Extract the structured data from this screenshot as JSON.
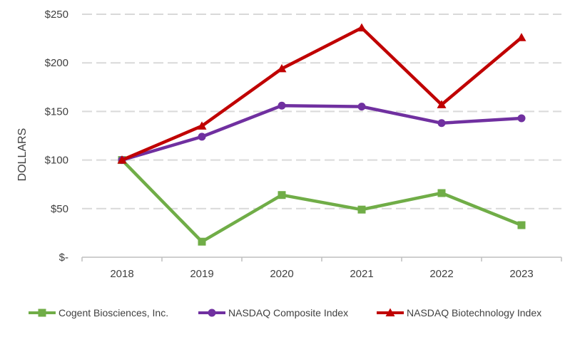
{
  "chart_data": {
    "type": "line",
    "title": "",
    "xlabel": "",
    "ylabel": "DOLLARS",
    "categories": [
      "2018",
      "2019",
      "2020",
      "2021",
      "2022",
      "2023"
    ],
    "y_ticks": [
      0,
      50,
      100,
      150,
      200,
      250
    ],
    "y_tick_labels": [
      "$-",
      "$50",
      "$100",
      "$150",
      "$200",
      "$250"
    ],
    "ylim": [
      0,
      250
    ],
    "grid": "horizontal-dashed",
    "legend_position": "bottom",
    "series": [
      {
        "name": "Cogent Biosciences, Inc.",
        "color": "#70ad47",
        "marker": "square",
        "values": [
          100,
          16,
          64,
          49,
          66,
          33
        ]
      },
      {
        "name": "NASDAQ Composite Index",
        "color": "#7030a0",
        "marker": "circle",
        "values": [
          100,
          124,
          156,
          155,
          138,
          143
        ]
      },
      {
        "name": "NASDAQ Biotechnology Index",
        "color": "#c00000",
        "marker": "triangle",
        "values": [
          100,
          135,
          194,
          236,
          157,
          226
        ]
      }
    ]
  }
}
